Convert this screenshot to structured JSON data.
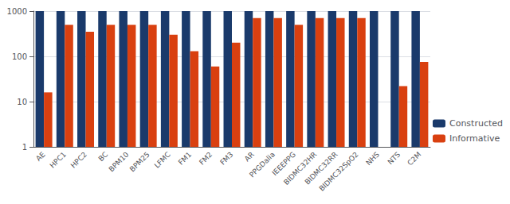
{
  "chart_data": {
    "type": "bar",
    "categories": [
      "AE",
      "HPC1",
      "HPC2",
      "BC",
      "BPM10",
      "BPM25",
      "LFMC",
      "FM1",
      "FM2",
      "FM3",
      "AR",
      "PPGDalia",
      "IEEEPPG",
      "BIDMC32HR",
      "BIDMC32RR",
      "BIDMC32SpO2",
      "NHS",
      "NTS",
      "C2M"
    ],
    "series": [
      {
        "name": "Constructed",
        "color": "#1a3a6b",
        "values": [
          1000,
          1000,
          1000,
          1000,
          1000,
          1000,
          1000,
          1000,
          1000,
          1000,
          1000,
          1000,
          1000,
          1000,
          1000,
          1000,
          1000,
          1000,
          1000
        ]
      },
      {
        "name": "Informative",
        "color": "#d94010",
        "values": [
          16,
          500,
          350,
          500,
          500,
          500,
          300,
          130,
          60,
          200,
          700,
          700,
          500,
          700,
          700,
          700,
          1,
          22,
          75
        ]
      }
    ],
    "log": "y",
    "ylim": [
      1,
      1000
    ],
    "yticks": [
      1,
      10,
      100,
      1000
    ],
    "grid": true,
    "legend": "lower right"
  }
}
